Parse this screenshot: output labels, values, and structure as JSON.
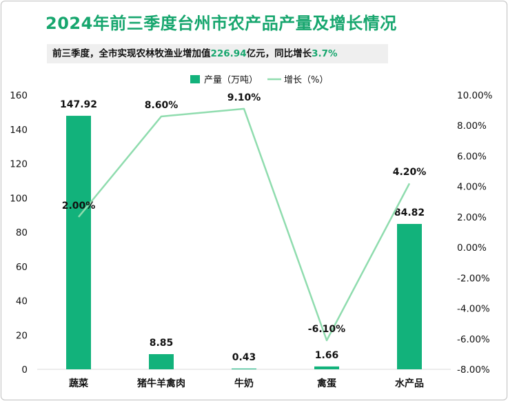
{
  "title": "2024年前三季度台州市农产品产量及增长情况",
  "subtitle": {
    "prefix": "前三季度，全市实现农林牧渔业增加值",
    "value": "226.94",
    "mid": "亿元，同比增长",
    "growth": "3.7%"
  },
  "colors": {
    "bar": "#12b27b",
    "line": "#8fdcae",
    "title": "#17a66e"
  },
  "chart_data": {
    "type": "bar",
    "categories": [
      "蔬菜",
      "猪牛羊禽肉",
      "牛奶",
      "禽蛋",
      "水产品"
    ],
    "series": [
      {
        "name": "产量（万吨）",
        "type": "bar",
        "axis": "left",
        "values": [
          147.92,
          8.85,
          0.43,
          1.66,
          84.82
        ],
        "labels": [
          "147.92",
          "8.85",
          "0.43",
          "1.66",
          "84.82"
        ]
      },
      {
        "name": "增长（%）",
        "type": "line",
        "axis": "right",
        "values": [
          2.0,
          8.6,
          9.1,
          -6.1,
          4.2
        ],
        "labels": [
          "2.00%",
          "8.60%",
          "9.10%",
          "-6.10%",
          "4.20%"
        ]
      }
    ],
    "y_left": {
      "min": 0,
      "max": 160,
      "ticks": [
        "0",
        "20",
        "40",
        "60",
        "80",
        "100",
        "120",
        "140",
        "160"
      ]
    },
    "y_right": {
      "min": -8,
      "max": 10,
      "ticks": [
        "-8.00%",
        "-6.00%",
        "-4.00%",
        "-2.00%",
        "0.00%",
        "2.00%",
        "4.00%",
        "6.00%",
        "8.00%",
        "10.00%"
      ]
    },
    "legend_position": "top-center",
    "grid": false
  }
}
